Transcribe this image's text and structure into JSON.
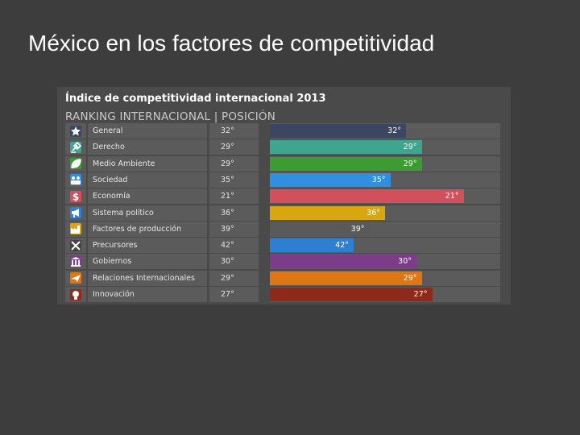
{
  "slide": {
    "title": "México en los factores de competitividad"
  },
  "panel": {
    "title": "Índice de competitividad internacional 2013",
    "subtitle": "RANKING INTERNACIONAL | POSICIÓN"
  },
  "chart_data": {
    "type": "bar",
    "title": "Índice de competitividad internacional 2013",
    "subtitle": "RANKING INTERNACIONAL | POSICIÓN",
    "categories": [
      "General",
      "Derecho",
      "Medio Ambiente",
      "Sociedad",
      "Economía",
      "Sistema político",
      "Factores de producción",
      "Precursores",
      "Gobiernos",
      "Relaciones Internacionales",
      "Innovación"
    ],
    "values": [
      32,
      29,
      29,
      35,
      21,
      36,
      39,
      42,
      30,
      29,
      27
    ],
    "value_labels": [
      "32°",
      "29°",
      "29°",
      "35°",
      "21°",
      "36°",
      "39°",
      "42°",
      "30°",
      "29°",
      "27°"
    ],
    "colors": [
      "#3b4662",
      "#3fa58e",
      "#3c9c32",
      "#2f8fe0",
      "#d2505e",
      "#d8a70f",
      "#5a5a5a",
      "#2f7fd0",
      "#7d3c87",
      "#e07514",
      "#8f2a1a"
    ],
    "icons": [
      "star-icon",
      "gavel-icon",
      "leaf-icon",
      "people-icon",
      "dollar-icon",
      "megaphone-icon",
      "factory-icon",
      "tools-icon",
      "government-building-icon",
      "airplane-icon",
      "lightbulb-icon"
    ]
  },
  "rows": [
    {
      "label": "General",
      "position": "32°",
      "icon": "star-icon",
      "color": "#3b4662"
    },
    {
      "label": "Derecho",
      "position": "29°",
      "icon": "gavel-icon",
      "color": "#3fa58e"
    },
    {
      "label": "Medio Ambiente",
      "position": "29°",
      "icon": "leaf-icon",
      "color": "#3c9c32"
    },
    {
      "label": "Sociedad",
      "position": "35°",
      "icon": "people-icon",
      "color": "#2f8fe0"
    },
    {
      "label": "Economía",
      "position": "21°",
      "icon": "dollar-icon",
      "color": "#d2505e"
    },
    {
      "label": "Sistema político",
      "position": "36°",
      "icon": "megaphone-icon",
      "color": "#d8a70f"
    },
    {
      "label": "Factores de producción",
      "position": "39°",
      "icon": "factory-icon",
      "color": "#5a5a5a"
    },
    {
      "label": "Precursores",
      "position": "42°",
      "icon": "tools-icon",
      "color": "#2f7fd0"
    },
    {
      "label": "Gobiernos",
      "position": "30°",
      "icon": "government-building-icon",
      "color": "#7d3c87"
    },
    {
      "label": "Relaciones Internacionales",
      "position": "29°",
      "icon": "airplane-icon",
      "color": "#e07514"
    },
    {
      "label": "Innovación",
      "position": "27°",
      "icon": "lightbulb-icon",
      "color": "#8f2a1a"
    }
  ]
}
